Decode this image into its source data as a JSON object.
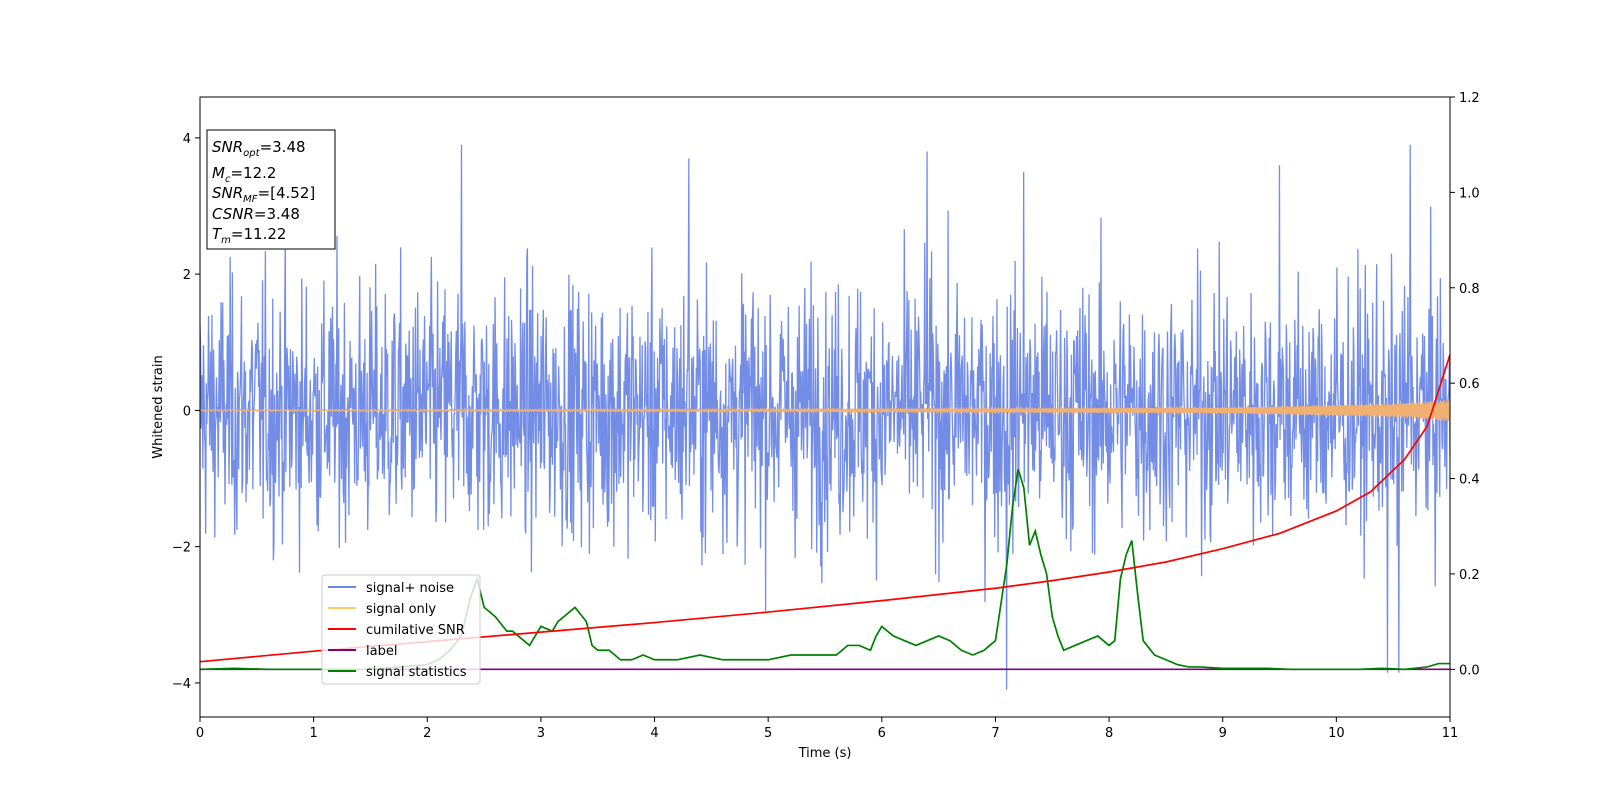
{
  "chart_data": {
    "type": "line",
    "xlabel": "Time (s)",
    "ylabel": "Whitened strain",
    "xlim": [
      0,
      11
    ],
    "ylim": [
      -4.5,
      4.6
    ],
    "y2lim": [
      -0.1,
      1.2
    ],
    "x_ticks": [
      "0",
      "1",
      "2",
      "3",
      "4",
      "5",
      "6",
      "7",
      "8",
      "9",
      "10",
      "11"
    ],
    "y_ticks": [
      "4",
      "2",
      "0",
      "−2",
      "−4"
    ],
    "y_tick_values": [
      4,
      2,
      0,
      -2,
      -4
    ],
    "y2_ticks": [
      "1.2",
      "1.0",
      "0.8",
      "0.6",
      "0.4",
      "0.2",
      "0.0"
    ],
    "y2_tick_values": [
      1.2,
      1.0,
      0.8,
      0.6,
      0.4,
      0.2,
      0.0
    ],
    "info_box": {
      "snr_opt": {
        "base": "SNR",
        "sub": "opt",
        "value": "=3.48"
      },
      "mc": {
        "base": "M",
        "sub": "c",
        "value": "=12.2"
      },
      "snr_mf": {
        "base": "SNR",
        "sub": "MF",
        "value": "=[4.52]"
      },
      "csnr": {
        "base": "CSNR",
        "value": "=3.48"
      },
      "tm": {
        "base": "T",
        "sub": "m",
        "value": "=11.22"
      }
    },
    "legend": [
      {
        "label": "signal+ noise",
        "color": "#6b87e6"
      },
      {
        "label": "signal only",
        "color": "#ffc966"
      },
      {
        "label": "cumilative SNR",
        "color": "#ff0000"
      },
      {
        "label": "label",
        "color": "#800080"
      },
      {
        "label": "signal statistics",
        "color": "#008000"
      }
    ],
    "series": [
      {
        "name": "signal+ noise",
        "axis": "left",
        "color": "#6b87e6",
        "noise_sigma": 1.0,
        "n_points": 2200,
        "notable_peaks": [
          {
            "x": 2.3,
            "y": 3.9
          },
          {
            "x": 4.3,
            "y": 3.7
          },
          {
            "x": 6.4,
            "y": 3.8
          },
          {
            "x": 7.25,
            "y": 3.5
          },
          {
            "x": 9.5,
            "y": 3.6
          },
          {
            "x": 10.65,
            "y": 3.9
          },
          {
            "x": 7.1,
            "y": -4.1
          },
          {
            "x": 10.45,
            "y": -3.85
          },
          {
            "x": 10.55,
            "y": -3.85
          }
        ]
      },
      {
        "name": "signal only",
        "axis": "left",
        "color": "#f0b072",
        "envelope": [
          [
            0,
            0.01
          ],
          [
            6,
            0.02
          ],
          [
            9,
            0.04
          ],
          [
            10,
            0.08
          ],
          [
            10.5,
            0.1
          ],
          [
            11,
            0.16
          ]
        ]
      },
      {
        "name": "cumilative SNR",
        "axis": "right",
        "color": "#ff0000",
        "x": [
          0,
          1,
          2,
          3,
          4,
          5,
          6,
          7,
          7.5,
          8,
          8.5,
          9,
          9.5,
          10,
          10.3,
          10.6,
          10.8,
          11
        ],
        "y": [
          0.016,
          0.038,
          0.058,
          0.078,
          0.098,
          0.12,
          0.144,
          0.17,
          0.186,
          0.204,
          0.225,
          0.253,
          0.285,
          0.332,
          0.372,
          0.44,
          0.51,
          0.66
        ]
      },
      {
        "name": "label",
        "axis": "right",
        "color": "#800080",
        "x": [
          0,
          11
        ],
        "y": [
          0.0,
          0.0
        ]
      },
      {
        "name": "signal statistics",
        "axis": "right",
        "color": "#008000",
        "x": [
          0,
          0.3,
          0.6,
          1.0,
          1.5,
          2.0,
          2.1,
          2.2,
          2.3,
          2.38,
          2.44,
          2.5,
          2.6,
          2.7,
          2.75,
          2.8,
          2.9,
          3.0,
          3.1,
          3.15,
          3.2,
          3.3,
          3.4,
          3.45,
          3.5,
          3.6,
          3.7,
          3.8,
          3.9,
          4.0,
          4.2,
          4.4,
          4.6,
          4.8,
          5.0,
          5.2,
          5.4,
          5.6,
          5.7,
          5.8,
          5.9,
          5.95,
          6.0,
          6.1,
          6.2,
          6.3,
          6.4,
          6.5,
          6.6,
          6.7,
          6.8,
          6.9,
          6.95,
          7.0,
          7.05,
          7.1,
          7.15,
          7.2,
          7.25,
          7.3,
          7.35,
          7.4,
          7.45,
          7.5,
          7.55,
          7.6,
          7.7,
          7.8,
          7.9,
          8.0,
          8.05,
          8.1,
          8.15,
          8.2,
          8.25,
          8.3,
          8.4,
          8.5,
          8.6,
          8.7,
          8.8,
          9.0,
          9.2,
          9.4,
          9.6,
          9.8,
          10.0,
          10.2,
          10.4,
          10.6,
          10.8,
          10.9,
          11.0
        ],
        "y": [
          0.0,
          0.002,
          0.0,
          0.0,
          0.0,
          0.01,
          0.02,
          0.04,
          0.07,
          0.15,
          0.19,
          0.13,
          0.11,
          0.08,
          0.08,
          0.07,
          0.05,
          0.09,
          0.08,
          0.1,
          0.11,
          0.13,
          0.1,
          0.05,
          0.04,
          0.04,
          0.02,
          0.02,
          0.03,
          0.02,
          0.02,
          0.03,
          0.02,
          0.02,
          0.02,
          0.03,
          0.03,
          0.03,
          0.05,
          0.05,
          0.04,
          0.07,
          0.09,
          0.07,
          0.06,
          0.05,
          0.06,
          0.07,
          0.06,
          0.04,
          0.03,
          0.04,
          0.05,
          0.06,
          0.14,
          0.22,
          0.34,
          0.42,
          0.38,
          0.26,
          0.29,
          0.24,
          0.2,
          0.11,
          0.07,
          0.04,
          0.05,
          0.06,
          0.07,
          0.05,
          0.06,
          0.19,
          0.24,
          0.27,
          0.16,
          0.06,
          0.03,
          0.02,
          0.01,
          0.005,
          0.005,
          0.002,
          0.002,
          0.002,
          0.0,
          0.0,
          0.0,
          0.0,
          0.002,
          0.0,
          0.005,
          0.012,
          0.012
        ]
      }
    ]
  }
}
